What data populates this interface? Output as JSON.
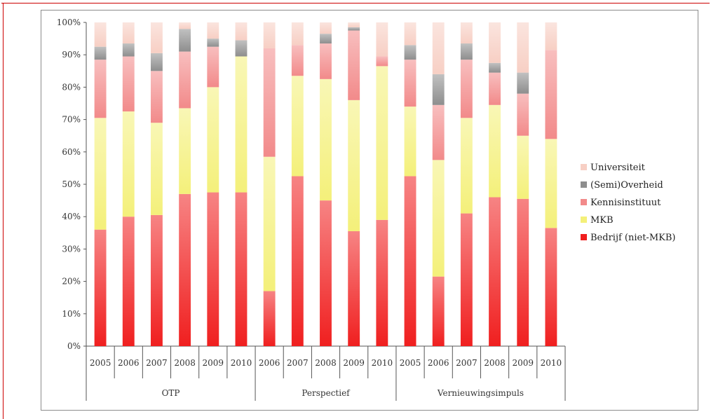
{
  "chart_data": {
    "type": "bar",
    "stacked": true,
    "normalized": true,
    "ylim": [
      0,
      100
    ],
    "y_ticks": [
      "0%",
      "10%",
      "20%",
      "30%",
      "40%",
      "50%",
      "60%",
      "70%",
      "80%",
      "90%",
      "100%"
    ],
    "groups": [
      {
        "label": "OTP",
        "categories": [
          "2005",
          "2006",
          "2007",
          "2008",
          "2009",
          "2010"
        ]
      },
      {
        "label": "Perspectief",
        "categories": [
          "2006",
          "2007",
          "2008",
          "2009",
          "2010"
        ]
      },
      {
        "label": "Vernieuwingsimpuls",
        "categories": [
          "2005",
          "2006",
          "2007",
          "2008",
          "2009",
          "2010"
        ]
      }
    ],
    "series": [
      {
        "name": "Bedrijf (niet-MKB)",
        "color": "#f01f1f",
        "values": [
          36,
          40,
          40.5,
          47,
          47.5,
          47.5,
          17,
          52.5,
          45,
          35.5,
          39,
          52.5,
          21.5,
          41,
          46,
          45.5,
          36.5
        ]
      },
      {
        "name": "MKB",
        "color": "#f4f07a",
        "values": [
          34.5,
          32.5,
          28.5,
          26.5,
          32.5,
          42,
          41.5,
          31,
          37.5,
          40.5,
          47.5,
          21.5,
          36,
          29.5,
          28.5,
          19.5,
          27.5
        ]
      },
      {
        "name": "Kennisinstituut",
        "color": "#f28a8a",
        "values": [
          18,
          17,
          16,
          17.5,
          12.5,
          0,
          33.5,
          9.5,
          11,
          21.5,
          3,
          14.5,
          17,
          18,
          10,
          13,
          27.5
        ]
      },
      {
        "name": "(Semi)Overheid",
        "color": "#8e8e8e",
        "values": [
          4,
          4,
          5.5,
          7,
          2.5,
          5,
          0,
          0,
          3,
          1,
          0,
          4.5,
          9.5,
          5,
          3,
          6.5,
          0
        ]
      },
      {
        "name": "Universiteit",
        "color": "#f7cfc4",
        "values": [
          7.5,
          6.5,
          9.5,
          2,
          5,
          5.5,
          8,
          7,
          3.5,
          1.5,
          10.5,
          7,
          16,
          6.5,
          12.5,
          15.5,
          8.5
        ]
      }
    ],
    "legend_position": "right",
    "legend_order": [
      "Universiteit",
      "(Semi)Overheid",
      "Kennisinstituut",
      "MKB",
      "Bedrijf (niet-MKB)"
    ],
    "grid": false
  }
}
